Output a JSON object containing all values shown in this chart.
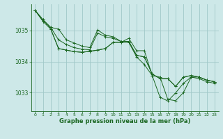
{
  "background_color": "#cde8e8",
  "plot_bg_color": "#cde8e8",
  "grid_color": "#a0c8c8",
  "line_color": "#1a6620",
  "marker_color": "#1a6620",
  "xlabel": "Graphe pression niveau de la mer (hPa)",
  "xlabel_fontsize": 6.0,
  "ylim": [
    1032.4,
    1035.85
  ],
  "xlim": [
    -0.5,
    23.5
  ],
  "yticks": [
    1033,
    1034,
    1035
  ],
  "xticks": [
    0,
    1,
    2,
    3,
    4,
    5,
    6,
    7,
    8,
    9,
    10,
    11,
    12,
    13,
    14,
    15,
    16,
    17,
    18,
    19,
    20,
    21,
    22,
    23
  ],
  "series": [
    {
      "x": [
        0,
        1,
        2,
        3,
        4,
        5,
        6,
        7,
        8,
        9,
        10,
        11,
        12,
        13,
        14,
        15,
        16,
        17,
        18,
        19,
        20,
        21,
        22,
        23
      ],
      "y": [
        1035.65,
        1035.35,
        1035.1,
        1035.05,
        1034.7,
        1034.6,
        1034.5,
        1034.45,
        1035.02,
        1034.85,
        1034.8,
        1034.65,
        1034.65,
        1034.2,
        1034.15,
        1033.6,
        1033.45,
        1033.45,
        1033.2,
        1033.5,
        1033.55,
        1033.5,
        1033.4,
        1033.35
      ]
    },
    {
      "x": [
        0,
        1,
        2,
        3,
        4,
        5,
        6,
        7,
        8,
        9,
        10,
        11,
        12,
        13,
        14,
        15,
        16,
        17,
        18,
        19,
        20,
        21,
        22,
        23
      ],
      "y": [
        1035.65,
        1035.35,
        1035.1,
        1034.7,
        1034.55,
        1034.45,
        1034.4,
        1034.38,
        1034.92,
        1034.8,
        1034.75,
        1034.65,
        1034.65,
        1034.2,
        1034.15,
        1033.6,
        1033.45,
        1033.45,
        1033.2,
        1033.5,
        1033.55,
        1033.5,
        1033.4,
        1033.35
      ]
    },
    {
      "x": [
        0,
        1,
        2,
        3,
        4,
        5,
        6,
        7,
        8,
        9,
        10,
        11,
        12,
        13,
        14,
        15,
        16,
        17,
        18,
        19,
        20,
        21,
        22,
        23
      ],
      "y": [
        1035.65,
        1035.3,
        1035.05,
        1034.42,
        1034.37,
        1034.32,
        1034.3,
        1034.33,
        1034.37,
        1034.42,
        1034.62,
        1034.62,
        1034.75,
        1034.35,
        1034.35,
        1033.55,
        1032.85,
        1032.73,
        1032.99,
        1033.3,
        1033.5,
        1033.45,
        1033.35,
        1033.3
      ]
    },
    {
      "x": [
        0,
        1,
        2,
        3,
        4,
        5,
        6,
        7,
        8,
        9,
        10,
        11,
        12,
        13,
        14,
        15,
        16,
        17,
        18,
        19,
        20,
        21,
        22,
        23
      ],
      "y": [
        1035.65,
        1035.3,
        1035.05,
        1034.42,
        1034.37,
        1034.32,
        1034.3,
        1034.33,
        1034.37,
        1034.42,
        1034.62,
        1034.62,
        1034.62,
        1034.15,
        1033.9,
        1033.55,
        1033.5,
        1032.78,
        1032.74,
        1033.0,
        1033.5,
        1033.5,
        1033.4,
        1033.35
      ]
    }
  ]
}
